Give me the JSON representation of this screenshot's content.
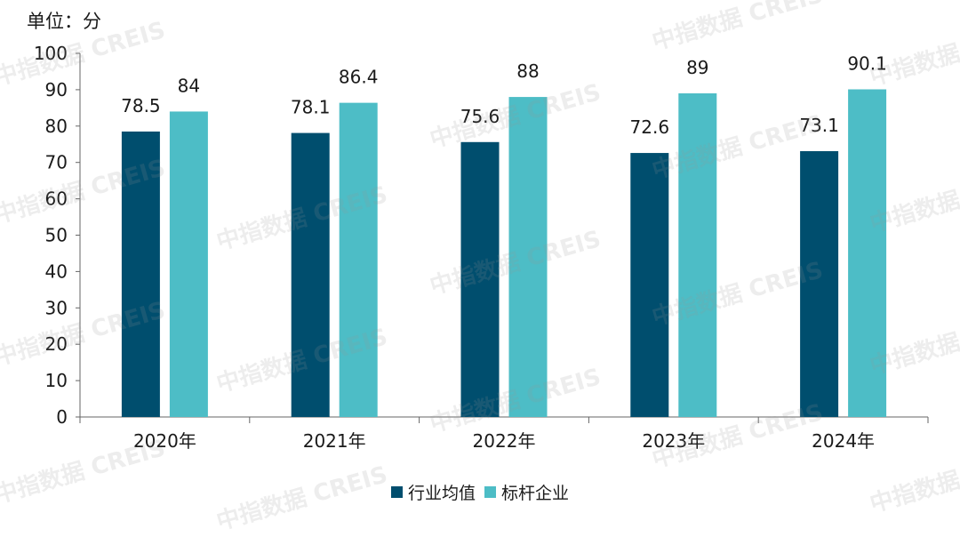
{
  "unit_label": "单位：分",
  "watermark_text": "中指数据 CREIS",
  "colors": {
    "series_0": "#004e6e",
    "series_1": "#4dbdc6",
    "axis": "#666666"
  },
  "chart_data": {
    "type": "bar",
    "title": "",
    "xlabel": "",
    "ylabel": "单位：分",
    "categories": [
      "2020年",
      "2021年",
      "2022年",
      "2023年",
      "2024年"
    ],
    "series": [
      {
        "name": "行业均值",
        "values": [
          78.5,
          78.1,
          75.6,
          72.6,
          73.1
        ]
      },
      {
        "name": "标杆企业",
        "values": [
          84,
          86.4,
          88,
          89,
          90.1
        ]
      }
    ],
    "value_labels": [
      [
        "78.5",
        "78.1",
        "75.6",
        "72.6",
        "73.1"
      ],
      [
        "84",
        "86.4",
        "88",
        "89",
        "90.1"
      ]
    ],
    "ylim": [
      0,
      100
    ],
    "yticks": [
      0,
      10,
      20,
      30,
      40,
      50,
      60,
      70,
      80,
      90,
      100
    ],
    "grid": false,
    "legend": "bottom-center"
  }
}
